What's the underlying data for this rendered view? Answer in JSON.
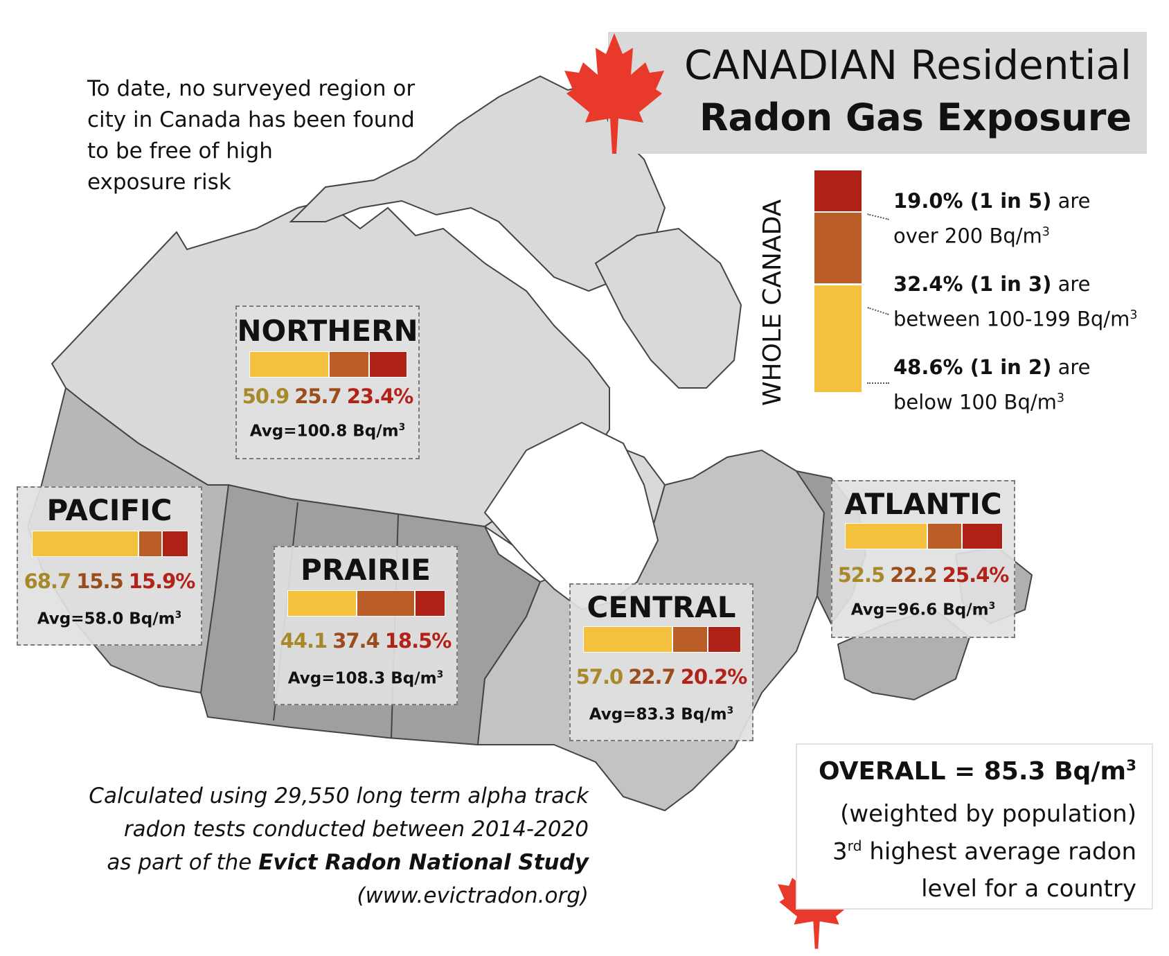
{
  "title": {
    "line1": "CANADIAN Residential",
    "line2": "Radon Gas Exposure"
  },
  "intro_text": "To date, no surveyed region or\ncity in Canada has been found\nto be free of high\nexposure risk",
  "colors": {
    "low": "#f4c13e",
    "mid": "#bb5d26",
    "high": "#ad2117",
    "low_text": "#a8892a",
    "mid_text": "#9b4c1c",
    "high_text": "#b32218",
    "leaf": "#e8392a",
    "land": "#d9d9d9",
    "prairie_land": "#9f9f9f",
    "pacific_land": "#b7b7b7",
    "central_land": "#c3c3c3",
    "atlantic_land": "#9b9b9b"
  },
  "icons": [
    "maple-leaf-icon"
  ],
  "whole_canada": {
    "label": "WHOLE CANADA",
    "bands": [
      {
        "pct": 19.0,
        "bold": "19.0% (1 in 5)",
        "rest": " are",
        "line2": "over 200 Bq/m",
        "sup": "3"
      },
      {
        "pct": 32.4,
        "bold": "32.4% (1 in 3)",
        "rest": " are",
        "line2": "between 100-199 Bq/m",
        "sup": "3"
      },
      {
        "pct": 48.6,
        "bold": "48.6% (1 in 2)",
        "rest": " are",
        "line2": "below 100 Bq/m",
        "sup": "3"
      }
    ]
  },
  "regions": {
    "northern": {
      "name": "NORTHERN",
      "low": "50.9",
      "mid": "25.7",
      "high": "23.4%",
      "avg": "Avg=100.8 Bq/m",
      "sup": "3",
      "shares": [
        50.9,
        25.7,
        23.4
      ]
    },
    "pacific": {
      "name": "PACIFIC",
      "low": "68.7",
      "mid": "15.5",
      "high": "15.9%",
      "avg": "Avg=58.0 Bq/m",
      "sup": "3",
      "shares": [
        68.7,
        15.5,
        15.9
      ]
    },
    "prairie": {
      "name": "PRAIRIE",
      "low": "44.1",
      "mid": "37.4",
      "high": "18.5%",
      "avg": "Avg=108.3 Bq/m",
      "sup": "3",
      "shares": [
        44.1,
        37.4,
        18.5
      ]
    },
    "central": {
      "name": "CENTRAL",
      "low": "57.0",
      "mid": "22.7",
      "high": "20.2%",
      "avg": "Avg=83.3 Bq/m",
      "sup": "3",
      "shares": [
        57.0,
        22.7,
        20.2
      ]
    },
    "atlantic": {
      "name": "ATLANTIC",
      "low": "52.5",
      "mid": "22.2",
      "high": "25.4%",
      "avg": "Avg=96.6 Bq/m",
      "sup": "3",
      "shares": [
        52.5,
        22.2,
        25.4
      ]
    }
  },
  "overall": {
    "title": "OVERALL = 85.3 Bq/m",
    "title_sup": "3",
    "line1": "(weighted by population)",
    "line2_num": "3",
    "line2_sup": "rd",
    "line2_rest": " highest average radon",
    "line3": "level for a country"
  },
  "footnote": {
    "line1": "Calculated using 29,550 long term alpha track",
    "line2": "radon tests conducted between 2014-2020",
    "line3_pre": "as part of the ",
    "line3_bold": "Evict Radon National Study",
    "line4": "(www.evictradon.org)"
  }
}
